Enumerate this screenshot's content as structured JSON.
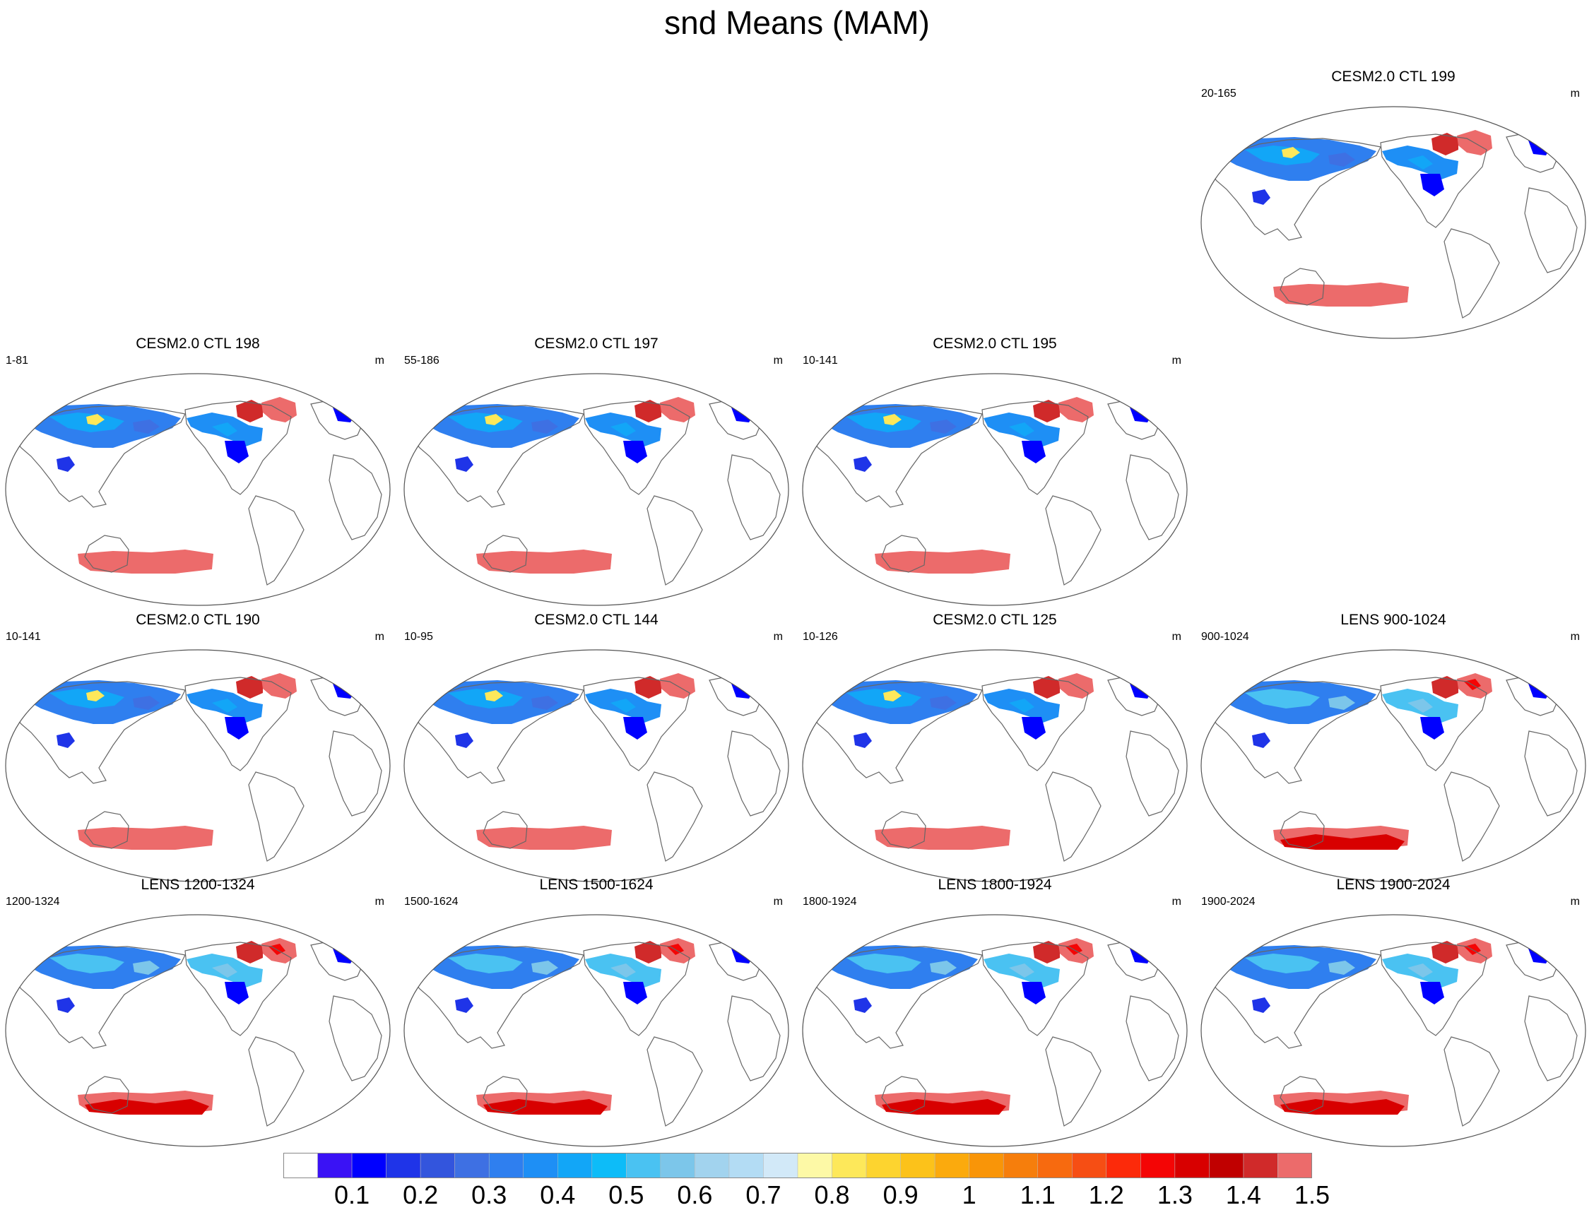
{
  "figure": {
    "title": "snd Means (MAM)"
  },
  "panels": [
    {
      "title": "CESM2.0 CTL 199",
      "range": "20-165",
      "unit": "m",
      "row": 0,
      "col": 3,
      "variant": "ctl"
    },
    {
      "title": "CESM2.0 CTL 198",
      "range": "1-81",
      "unit": "m",
      "row": 1,
      "col": 0,
      "variant": "ctl"
    },
    {
      "title": "CESM2.0 CTL 197",
      "range": "55-186",
      "unit": "m",
      "row": 1,
      "col": 1,
      "variant": "ctl"
    },
    {
      "title": "CESM2.0 CTL 195",
      "range": "10-141",
      "unit": "m",
      "row": 1,
      "col": 2,
      "variant": "ctl"
    },
    {
      "title": "CESM2.0 CTL 190",
      "range": "10-141",
      "unit": "m",
      "row": 2,
      "col": 0,
      "variant": "ctl"
    },
    {
      "title": "CESM2.0 CTL 144",
      "range": "10-95",
      "unit": "m",
      "row": 2,
      "col": 1,
      "variant": "ctl"
    },
    {
      "title": "CESM2.0 CTL 125",
      "range": "10-126",
      "unit": "m",
      "row": 2,
      "col": 2,
      "variant": "ctl"
    },
    {
      "title": "LENS 900-1024",
      "range": "900-1024",
      "unit": "m",
      "row": 2,
      "col": 3,
      "variant": "lens"
    },
    {
      "title": "LENS 1200-1324",
      "range": "1200-1324",
      "unit": "m",
      "row": 3,
      "col": 0,
      "variant": "lens"
    },
    {
      "title": "LENS 1500-1624",
      "range": "1500-1624",
      "unit": "m",
      "row": 3,
      "col": 1,
      "variant": "lens"
    },
    {
      "title": "LENS 1800-1924",
      "range": "1800-1924",
      "unit": "m",
      "row": 3,
      "col": 2,
      "variant": "lens"
    },
    {
      "title": "LENS 1900-2024",
      "range": "1900-2024",
      "unit": "m",
      "row": 3,
      "col": 3,
      "variant": "lens"
    }
  ],
  "colorbar": {
    "colors": [
      "#ffffff",
      "#3a12f5",
      "#0000ff",
      "#1f34e8",
      "#3355dd",
      "#3e70e3",
      "#2f7fef",
      "#1e8ff5",
      "#12a6f7",
      "#0dbcf8",
      "#4ac2f2",
      "#7cc6ea",
      "#a2d3ee",
      "#b3dcf4",
      "#d2e9f8",
      "#fdf9a6",
      "#fde85a",
      "#fdd42f",
      "#fcc21a",
      "#fbaa0d",
      "#f99508",
      "#f67e0c",
      "#f76a0f",
      "#f64e14",
      "#fc2a0a",
      "#f40505",
      "#d80000",
      "#c00000",
      "#d02a2a",
      "#ec6b6b"
    ],
    "labels": [
      "0.1",
      "0.2",
      "0.3",
      "0.4",
      "0.5",
      "0.6",
      "0.7",
      "0.8",
      "0.9",
      "1",
      "1.1",
      "1.2",
      "1.3",
      "1.4",
      "1.5"
    ]
  }
}
